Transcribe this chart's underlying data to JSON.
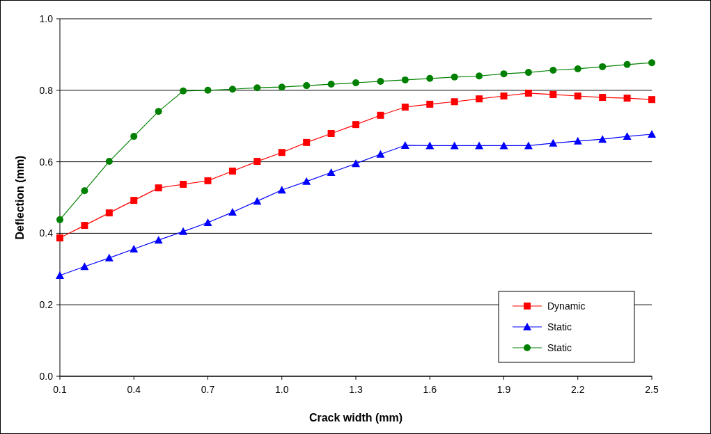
{
  "chart_data": {
    "type": "line",
    "xlabel": "Crack width (mm)",
    "ylabel": "Deflection (mm)",
    "x": [
      0.1,
      0.2,
      0.3,
      0.4,
      0.5,
      0.6,
      0.7,
      0.8,
      0.9,
      1.0,
      1.1,
      1.2,
      1.3,
      1.4,
      1.5,
      1.6,
      1.7,
      1.8,
      1.9,
      2.0,
      2.1,
      2.2,
      2.3,
      2.4,
      2.5
    ],
    "series": [
      {
        "name": "Dynamic",
        "color": "#ff0000",
        "marker": "square",
        "values": [
          0.387,
          0.422,
          0.457,
          0.492,
          0.527,
          0.537,
          0.547,
          0.574,
          0.601,
          0.626,
          0.654,
          0.679,
          0.704,
          0.73,
          0.753,
          0.761,
          0.768,
          0.776,
          0.784,
          0.792,
          0.788,
          0.784,
          0.78,
          0.778,
          0.774
        ]
      },
      {
        "name": "Static",
        "color": "#0000ff",
        "marker": "triangle",
        "values": [
          0.282,
          0.307,
          0.331,
          0.356,
          0.381,
          0.405,
          0.43,
          0.459,
          0.49,
          0.521,
          0.545,
          0.57,
          0.595,
          0.621,
          0.646,
          0.645,
          0.645,
          0.645,
          0.645,
          0.645,
          0.652,
          0.658,
          0.663,
          0.671,
          0.677
        ]
      },
      {
        "name": "Static",
        "color": "#008000",
        "marker": "circle",
        "values": [
          0.438,
          0.519,
          0.601,
          0.671,
          0.741,
          0.798,
          0.8,
          0.803,
          0.807,
          0.809,
          0.813,
          0.817,
          0.821,
          0.825,
          0.829,
          0.833,
          0.837,
          0.84,
          0.846,
          0.85,
          0.856,
          0.86,
          0.866,
          0.872,
          0.877
        ]
      }
    ],
    "xlim": [
      0.1,
      2.5
    ],
    "xticks": [
      0.1,
      0.4,
      0.7,
      {
        "value": 1,
        "label": "1.0"
      },
      1.3,
      1.6,
      1.9,
      2.2,
      2.5
    ],
    "ylim": [
      0,
      1
    ],
    "yticks": [
      {
        "value": 0,
        "label": "0.0"
      },
      0.2,
      0.4,
      0.6,
      0.8,
      {
        "value": 1,
        "label": "1.0"
      }
    ],
    "grid": "y",
    "legend": "bottom right",
    "line_style": "solid"
  }
}
